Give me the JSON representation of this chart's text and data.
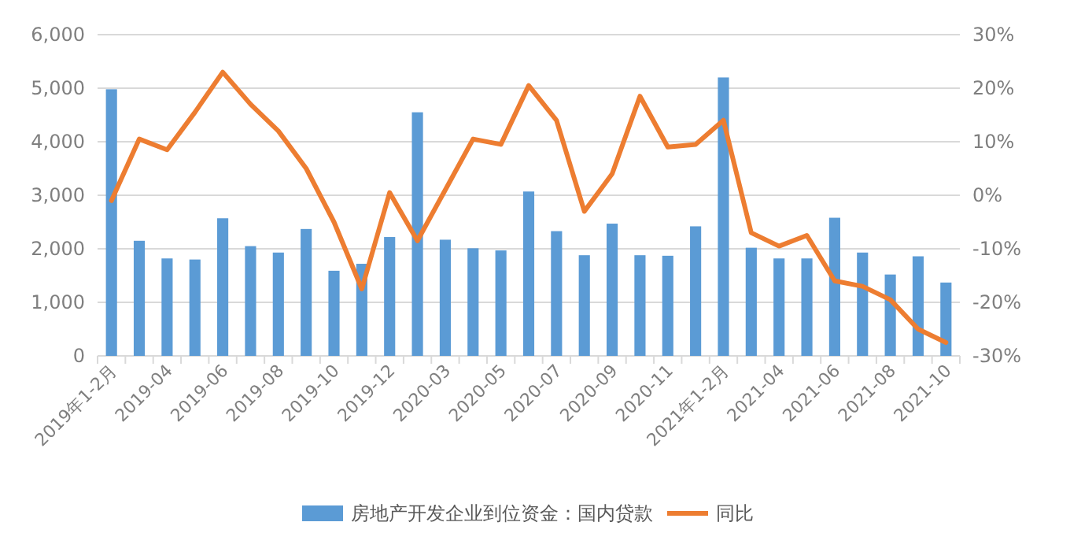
{
  "chart_data": {
    "type": "bar",
    "categories": [
      "2019年1-2月",
      null,
      "2019-04",
      null,
      "2019-06",
      null,
      "2019-08",
      null,
      "2019-10",
      null,
      "2019-12",
      null,
      "2020-03",
      null,
      "2020-05",
      null,
      "2020-07",
      null,
      "2020-09",
      null,
      "2020-11",
      null,
      "2021年1-2月",
      null,
      "2021-04",
      null,
      "2021-06",
      null,
      "2021-08",
      null,
      "2021-10"
    ],
    "series": [
      {
        "name": "房地产开发企业到位资金：国内贷款",
        "color": "#5b9bd5",
        "values": [
          4980,
          2150,
          1820,
          1800,
          2570,
          2050,
          1930,
          2370,
          1590,
          1720,
          2220,
          4550,
          2170,
          2010,
          1970,
          3070,
          2330,
          1880,
          2470,
          1880,
          1870,
          2420,
          5200,
          2020,
          1820,
          1820,
          2580,
          1930,
          1520,
          1860,
          1370
        ]
      },
      {
        "name": "同比",
        "type": "line",
        "axis": "y2",
        "color": "#ed7d31",
        "values": [
          -1,
          10.5,
          8.5,
          15.5,
          23,
          17,
          12,
          5,
          -5,
          -17.5,
          0.5,
          -8.5,
          1,
          10.5,
          9.5,
          20.5,
          14,
          -3,
          4,
          18.5,
          9,
          9.5,
          14,
          -7,
          -9.5,
          -7.5,
          -16,
          -17,
          -19.5,
          -25,
          -27.5
        ]
      }
    ],
    "ylim": [
      0,
      6000
    ],
    "yticks": [
      0,
      {
        "value": 1000,
        "label": "1,000"
      },
      {
        "value": 2000,
        "label": "2,000"
      },
      {
        "value": 3000,
        "label": "3,000"
      },
      {
        "value": 4000,
        "label": "4,000"
      },
      {
        "value": 5000,
        "label": "5,000"
      },
      {
        "value": 6000,
        "label": "6,000"
      }
    ],
    "y2lim": [
      -30,
      30
    ],
    "y2ticks": [
      {
        "value": -30,
        "label": "-30%"
      },
      {
        "value": -20,
        "label": "-20%"
      },
      {
        "value": -10,
        "label": "-10%"
      },
      {
        "value": 0,
        "label": "0%"
      },
      {
        "value": 10,
        "label": "10%"
      },
      {
        "value": 20,
        "label": "20%"
      },
      {
        "value": 30,
        "label": "30%"
      }
    ],
    "grid": "y",
    "legend": "bottom",
    "marker": "none",
    "line_style": "solid"
  }
}
